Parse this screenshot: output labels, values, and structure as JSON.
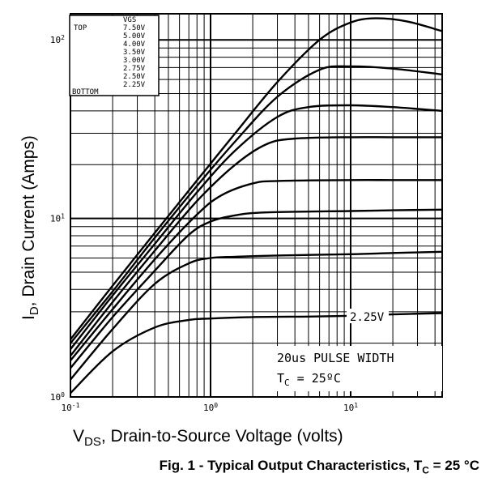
{
  "chart_data": {
    "type": "line",
    "title": "",
    "caption": {
      "prefix": "Fig. 1 - Typical Output Characteristics, T",
      "sub": "C",
      "suffix": " = 25 °C"
    },
    "xlabel": {
      "main": "V",
      "sub": "DS",
      "rest": ", Drain-to-Source Voltage (volts)"
    },
    "ylabel": {
      "main": "I",
      "sub": "D",
      "rest": ", Drain Current (Amps)"
    },
    "x_scale": "log",
    "y_scale": "log",
    "xlim": [
      0.1,
      45
    ],
    "ylim": [
      1,
      140
    ],
    "x_ticks": [
      {
        "value": 0.1,
        "base": "10",
        "exp": "-1"
      },
      {
        "value": 1,
        "base": "10",
        "exp": "0"
      },
      {
        "value": 10,
        "base": "10",
        "exp": "1"
      }
    ],
    "y_ticks": [
      {
        "value": 1,
        "base": "10",
        "exp": "0"
      },
      {
        "value": 10,
        "base": "10",
        "exp": "1"
      },
      {
        "value": 100,
        "base": "10",
        "exp": "2"
      }
    ],
    "grid": true,
    "legend": {
      "placement": "top-left",
      "header": "VGS",
      "top_label": "TOP",
      "bottom_label": "BOTTOM",
      "entries": [
        "7.50V",
        "5.00V",
        "4.00V",
        "3.50V",
        "3.00V",
        "2.75V",
        "2.50V",
        "2.25V"
      ]
    },
    "annotations": {
      "curve_label": "2.25V",
      "note_line1": "20us PULSE WIDTH",
      "note_line2_main": "T",
      "note_line2_sub": "C",
      "note_line2_rest": " = 25ºC"
    },
    "series": [
      {
        "name": "7.50V",
        "x": [
          0.1,
          0.2,
          0.4,
          0.8,
          1.5,
          3,
          6,
          10,
          15,
          25,
          45
        ],
        "y": [
          2.1,
          4.2,
          8.3,
          16.3,
          30,
          58,
          100,
          125,
          132,
          127,
          112
        ]
      },
      {
        "name": "5.00V",
        "x": [
          0.1,
          0.2,
          0.4,
          0.8,
          1.5,
          3,
          6,
          10,
          20,
          45
        ],
        "y": [
          2.0,
          3.9,
          7.8,
          15.2,
          27,
          48,
          68,
          71,
          69,
          64
        ]
      },
      {
        "name": "4.00V",
        "x": [
          0.1,
          0.2,
          0.4,
          0.8,
          1.5,
          3,
          5,
          10,
          20,
          45
        ],
        "y": [
          1.85,
          3.7,
          7.2,
          14,
          24,
          37,
          42,
          43,
          42,
          40
        ]
      },
      {
        "name": "3.50V",
        "x": [
          0.1,
          0.2,
          0.4,
          0.8,
          1.5,
          2.5,
          4,
          10,
          20,
          45
        ],
        "y": [
          1.7,
          3.4,
          6.6,
          12.5,
          20,
          26,
          28,
          28.5,
          28.5,
          28.5
        ]
      },
      {
        "name": "3.00V",
        "x": [
          0.1,
          0.2,
          0.4,
          0.8,
          1.2,
          2,
          3,
          10,
          20,
          45
        ],
        "y": [
          1.6,
          3.1,
          5.9,
          10.5,
          13.5,
          15.7,
          16.2,
          16.4,
          16.4,
          16.4
        ]
      },
      {
        "name": "2.75V",
        "x": [
          0.1,
          0.2,
          0.4,
          0.7,
          1.0,
          1.5,
          2.5,
          10,
          20,
          45
        ],
        "y": [
          1.45,
          2.8,
          5.1,
          8.1,
          9.6,
          10.4,
          10.8,
          11.0,
          11.1,
          11.2
        ]
      },
      {
        "name": "2.50V",
        "x": [
          0.1,
          0.2,
          0.4,
          0.7,
          1.0,
          1.5,
          3,
          10,
          20,
          45
        ],
        "y": [
          1.25,
          2.4,
          4.3,
          5.6,
          6.0,
          6.1,
          6.2,
          6.3,
          6.4,
          6.5
        ]
      },
      {
        "name": "2.25V",
        "x": [
          0.1,
          0.2,
          0.4,
          0.7,
          1.0,
          2,
          5,
          10,
          20,
          45
        ],
        "y": [
          1.05,
          1.8,
          2.45,
          2.7,
          2.75,
          2.8,
          2.82,
          2.85,
          2.9,
          2.95
        ]
      }
    ]
  }
}
